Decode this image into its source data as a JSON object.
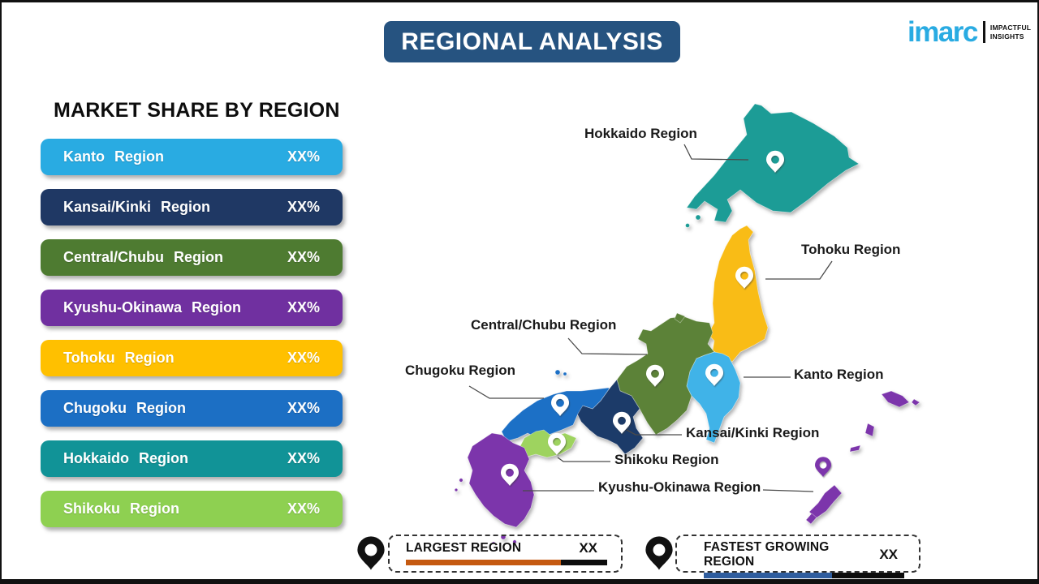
{
  "title": "REGIONAL ANALYSIS",
  "title_bg": "#265380",
  "logo": {
    "brand": "imarc",
    "brand_color": "#29ABE2",
    "tagline_line1": "IMPACTFUL",
    "tagline_line2": "INSIGHTS"
  },
  "market_share": {
    "heading": "MARKET SHARE BY REGION",
    "items": [
      {
        "label": "Kanto Region",
        "value": "XX%",
        "color": "#29ABE2"
      },
      {
        "label": "Kansai/Kinki Region",
        "value": "XX%",
        "color": "#1F3864"
      },
      {
        "label": "Central/Chubu Region",
        "value": "XX%",
        "color": "#4E7B31"
      },
      {
        "label": "Kyushu-Okinawa Region",
        "value": "XX%",
        "color": "#7030A0"
      },
      {
        "label": "Tohoku Region",
        "value": "XX%",
        "color": "#FFC000"
      },
      {
        "label": "Chugoku Region",
        "value": "XX%",
        "color": "#1C6FC4"
      },
      {
        "label": "Hokkaido Region",
        "value": "XX%",
        "color": "#119397"
      },
      {
        "label": "Shikoku Region",
        "value": "XX%",
        "color": "#8ED051"
      }
    ]
  },
  "map": {
    "regions": {
      "hokkaido": {
        "name": "Hokkaido",
        "color": "#1B9C96"
      },
      "tohoku": {
        "name": "Tohoku",
        "color": "#F9BC16"
      },
      "kanto": {
        "name": "Kanto",
        "color": "#3FB3E8"
      },
      "chubu": {
        "name": "Central/Chubu",
        "color": "#5C8238"
      },
      "kansai": {
        "name": "Kansai/Kinki",
        "color": "#1F3B69"
      },
      "chugoku": {
        "name": "Chugoku",
        "color": "#1D6FC6"
      },
      "shikoku": {
        "name": "Shikoku",
        "color": "#9ED35F"
      },
      "kyushu": {
        "name": "Kyushu-Okinawa",
        "color": "#7B34AB"
      }
    },
    "pin_color_white": "#ffffff",
    "pin_color_okinawa": "#7B34AB",
    "labels": [
      {
        "text": "Hokkaido Region"
      },
      {
        "text": "Tohoku Region"
      },
      {
        "text": "Central/Chubu Region"
      },
      {
        "text": "Chugoku Region"
      },
      {
        "text": "Kanto Region"
      },
      {
        "text": "Kansai/Kinki Region"
      },
      {
        "text": "Shikoku Region"
      },
      {
        "text": "Kyushu-Okinawa Region"
      }
    ]
  },
  "legend": {
    "largest": {
      "label": "LARGEST REGION",
      "value": "XX",
      "bar_color": "#C55A11",
      "bar_fill_pct": 77
    },
    "fastest": {
      "label": "FASTEST GROWING REGION",
      "value": "XX",
      "bar_color": "#2F5D9E",
      "bar_fill_pct": 64
    },
    "pin_color": "#111111"
  }
}
